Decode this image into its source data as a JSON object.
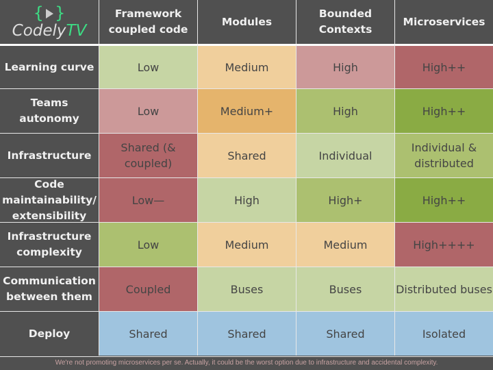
{
  "logo": {
    "text": "Codely",
    "accent": "TV",
    "braces_left": "{",
    "braces_right": "}"
  },
  "columns": [
    "Framework coupled code",
    "Modules",
    "Bounded Contexts",
    "Microservices"
  ],
  "colors": {
    "light_green": "#c6d5a4",
    "green": "#acc070",
    "dark_green": "#8aab44",
    "light_orange": "#f0cf9c",
    "orange": "#e5b46c",
    "light_red": "#cc9999",
    "red": "#b06669",
    "blue": "#9fc4df"
  },
  "rows": [
    {
      "label": "Learning curve",
      "cells": [
        {
          "v": "Low",
          "c": "light_green"
        },
        {
          "v": "Medium",
          "c": "light_orange"
        },
        {
          "v": "High",
          "c": "light_red"
        },
        {
          "v": "High++",
          "c": "red"
        }
      ]
    },
    {
      "label": "Teams autonomy",
      "cells": [
        {
          "v": "Low",
          "c": "light_red"
        },
        {
          "v": "Medium+",
          "c": "orange"
        },
        {
          "v": "High",
          "c": "green"
        },
        {
          "v": "High++",
          "c": "dark_green"
        }
      ]
    },
    {
      "label": "Infrastructure",
      "cells": [
        {
          "v": "Shared (& coupled)",
          "c": "red"
        },
        {
          "v": "Shared",
          "c": "light_orange"
        },
        {
          "v": "Individual",
          "c": "light_green"
        },
        {
          "v": "Individual & distributed",
          "c": "green"
        }
      ]
    },
    {
      "label": "Code maintainability/ extensibility",
      "cells": [
        {
          "v": "Low—",
          "c": "red"
        },
        {
          "v": "High",
          "c": "light_green"
        },
        {
          "v": "High+",
          "c": "green"
        },
        {
          "v": "High++",
          "c": "dark_green"
        }
      ]
    },
    {
      "label": "Infrastructure complexity",
      "cells": [
        {
          "v": "Low",
          "c": "green"
        },
        {
          "v": "Medium",
          "c": "light_orange"
        },
        {
          "v": "Medium",
          "c": "light_orange"
        },
        {
          "v": "High++++",
          "c": "red"
        }
      ]
    },
    {
      "label": "Communication between them",
      "cells": [
        {
          "v": "Coupled",
          "c": "red"
        },
        {
          "v": "Buses",
          "c": "light_green"
        },
        {
          "v": "Buses",
          "c": "light_green"
        },
        {
          "v": "Distributed buses",
          "c": "light_green"
        }
      ]
    },
    {
      "label": "Deploy",
      "cells": [
        {
          "v": "Shared",
          "c": "blue"
        },
        {
          "v": "Shared",
          "c": "blue"
        },
        {
          "v": "Shared",
          "c": "blue"
        },
        {
          "v": "Isolated",
          "c": "blue"
        }
      ]
    }
  ],
  "footer": "We're not promoting microservices per se. Actually, it could be the worst option due to infrastructure and accidental complexity."
}
